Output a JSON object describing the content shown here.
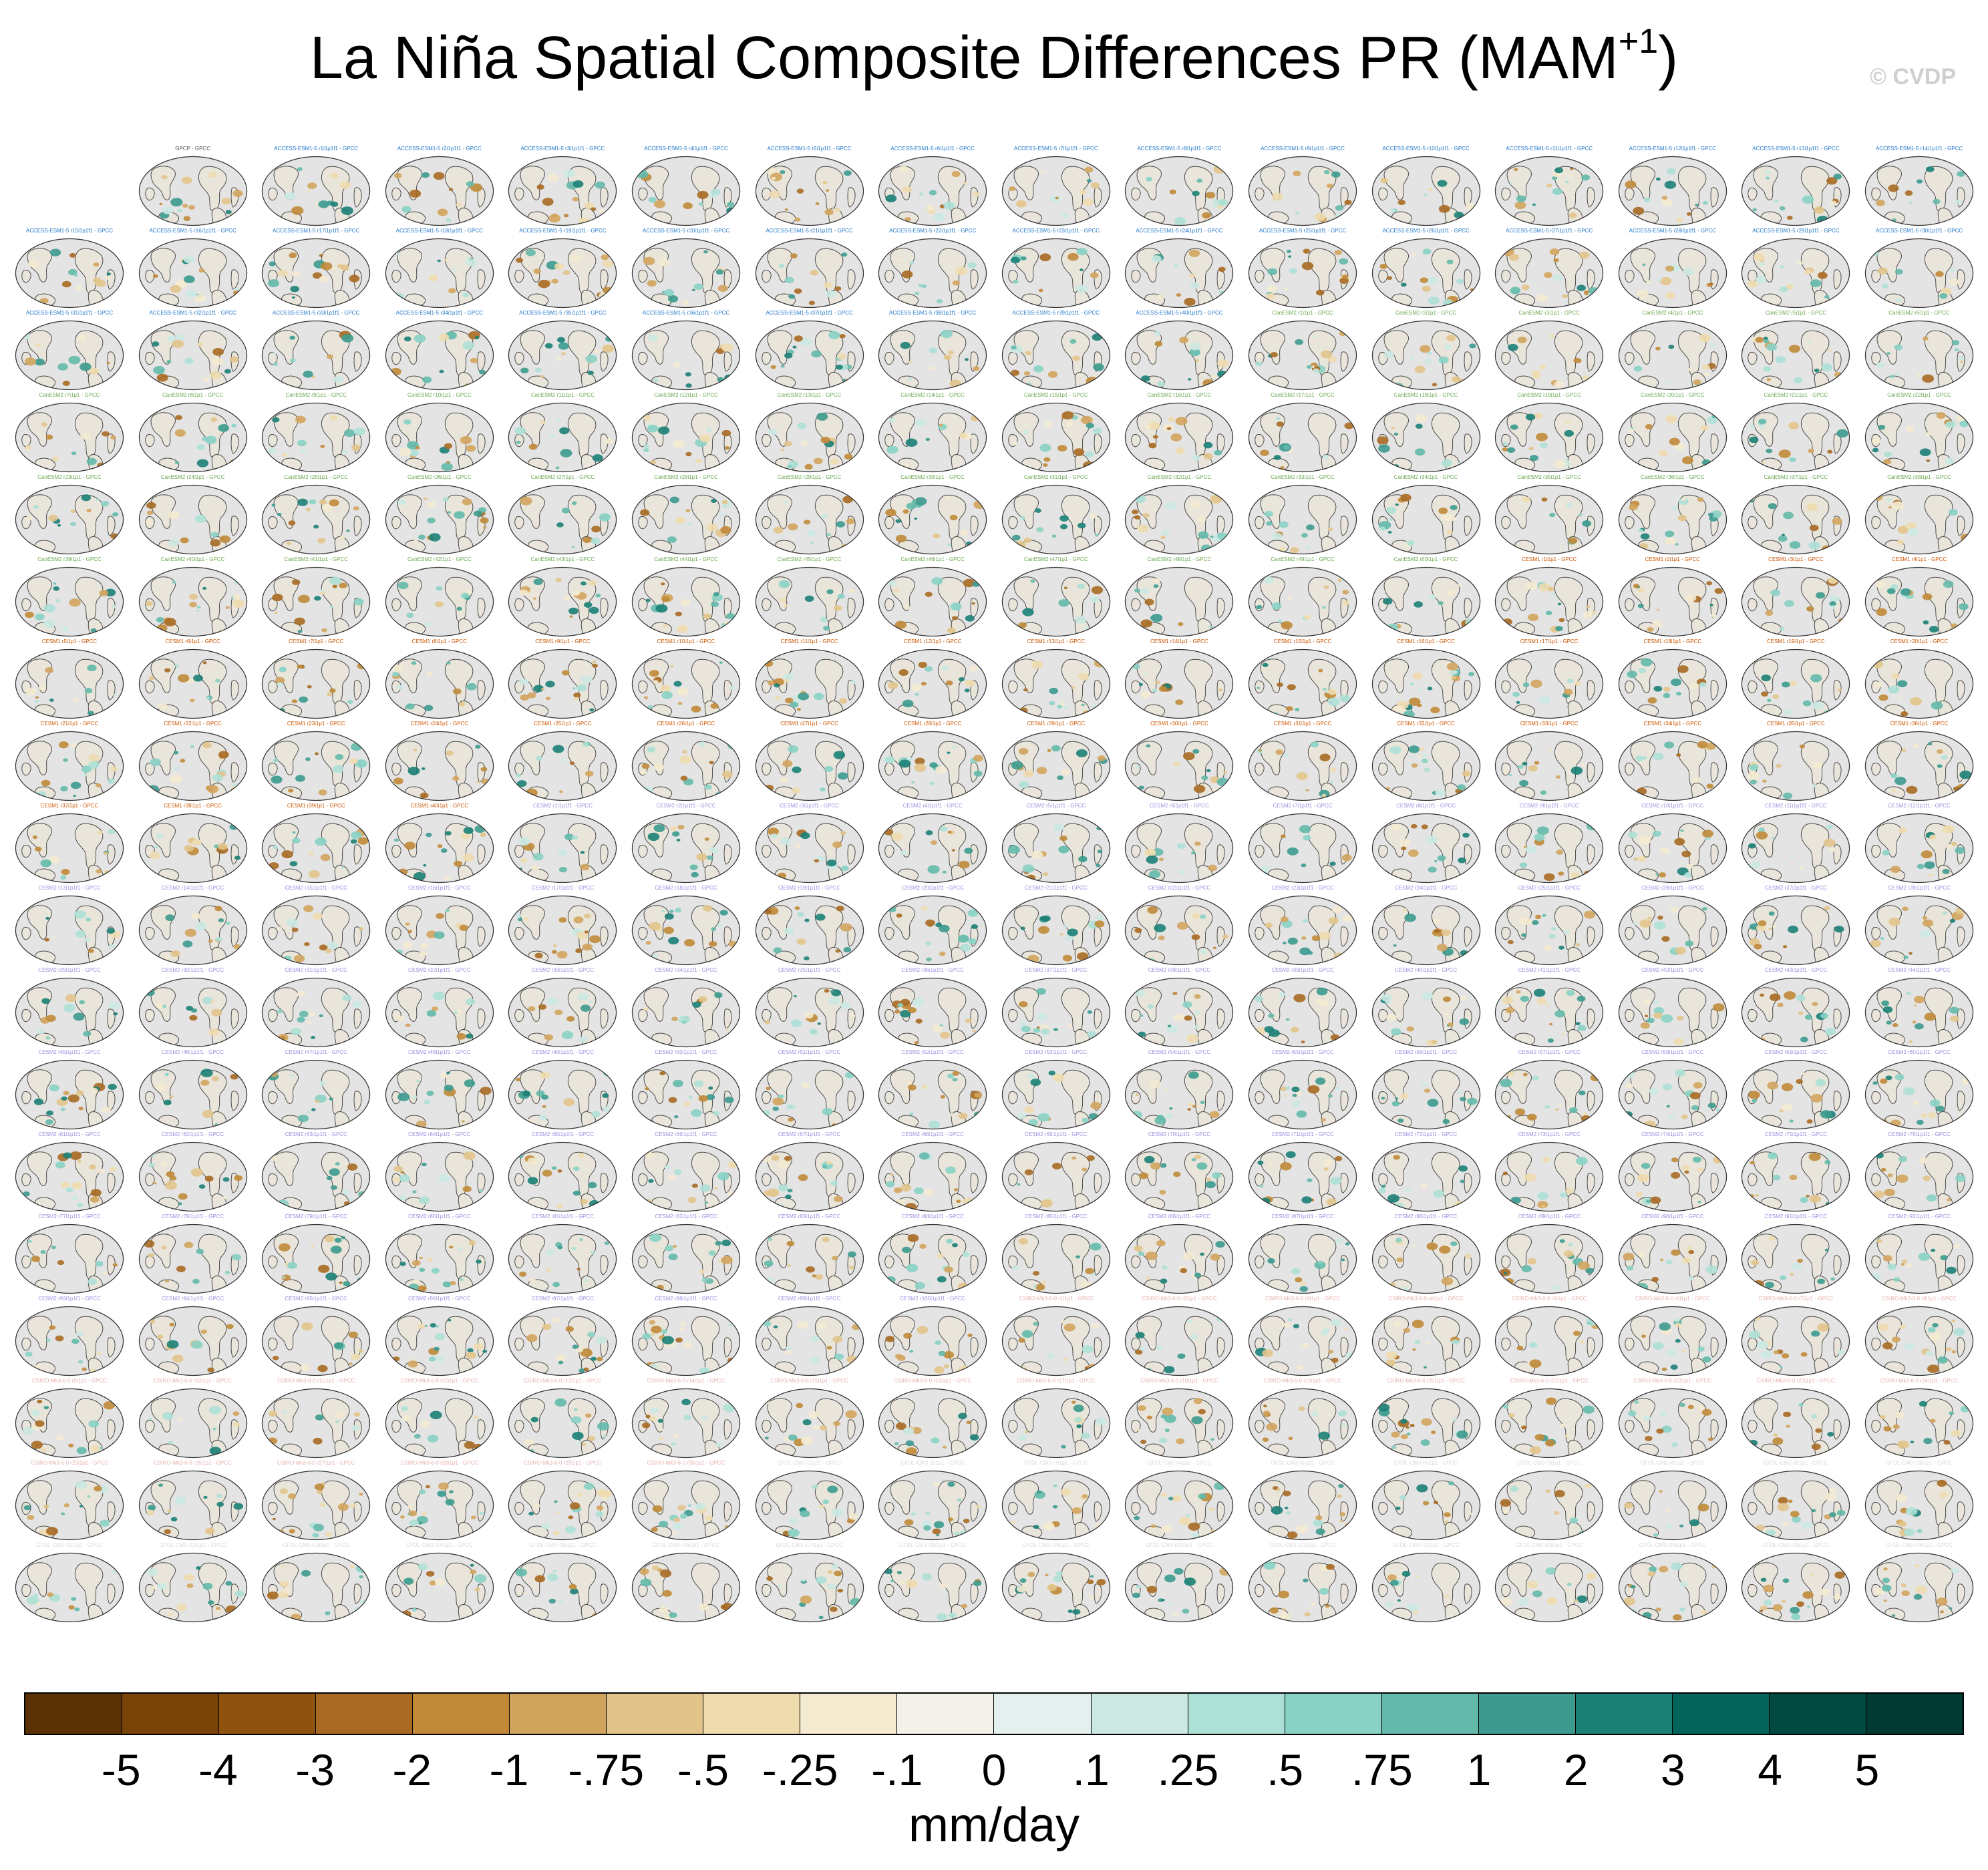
{
  "title": {
    "text": "La Niña Spatial Composite Differences PR (MAM",
    "superscript": "+1",
    "suffix": ")"
  },
  "copyright": "© CVDP",
  "chart_data": {
    "type": "heatmap",
    "title": "La Niña Spatial Composite Differences PR (MAM+1)",
    "variable": "PR",
    "season": "MAM+1",
    "observations": "GPCP",
    "difference_reference": "GPCC",
    "grid": {
      "rows": 18,
      "columns": 16,
      "panel_count": 287
    },
    "panel_groups": [
      {
        "model": "GPCP",
        "members": 1,
        "label_color": "#555555",
        "label_template": "GPCP - GPCC"
      },
      {
        "model": "ACCESS-ESM1-5",
        "members": 40,
        "label_color": "#1f77c9",
        "label_template": "ACCESS-ESM1-5 r{n}i1p1f1 - GPCC"
      },
      {
        "model": "CanESM2",
        "members": 50,
        "label_color": "#6aa84f",
        "label_template": "CanESM2 r{n}i1p1 - GPCC"
      },
      {
        "model": "CESM1",
        "members": 40,
        "label_color": "#cc5500",
        "label_template": "CESM1 r{n}i1p1 - GPCC"
      },
      {
        "model": "CESM2",
        "members": 100,
        "label_color": "#9b8fe0",
        "label_template": "CESM2 r{n}i1p1f1 - GPCC"
      },
      {
        "model": "CSIRO-Mk3-6-0",
        "members": 30,
        "label_color": "#e8b0b0",
        "label_template": "CSIRO-Mk3-6-0 r{n}i1p1 - GPCC"
      },
      {
        "model": "GFDL-CM3",
        "members": 26,
        "label_color": "#d8d8d8",
        "label_template": "GFDL-CM3 r{n}i1p1 - GPCC"
      }
    ],
    "colorbar": {
      "units": "mm/day",
      "tick_labels": [
        "-5",
        "-4",
        "-3",
        "-2",
        "-1",
        "-.75",
        "-.5",
        "-.25",
        "-.1",
        "0",
        ".1",
        ".25",
        ".5",
        ".75",
        "1",
        "2",
        "3",
        "4",
        "5"
      ],
      "colors": [
        "#5a3206",
        "#7a4409",
        "#8f520f",
        "#a86a22",
        "#c08938",
        "#d1a45d",
        "#e2c48b",
        "#eedcae",
        "#f4ead0",
        "#f4f1ea",
        "#e4f0ee",
        "#cbe8e2",
        "#ade0d6",
        "#88d2c4",
        "#63b9aa",
        "#3c9a8e",
        "#1b8076",
        "#02645b",
        "#014a42",
        "#003a31"
      ]
    }
  },
  "colorbar_units": "mm/day"
}
